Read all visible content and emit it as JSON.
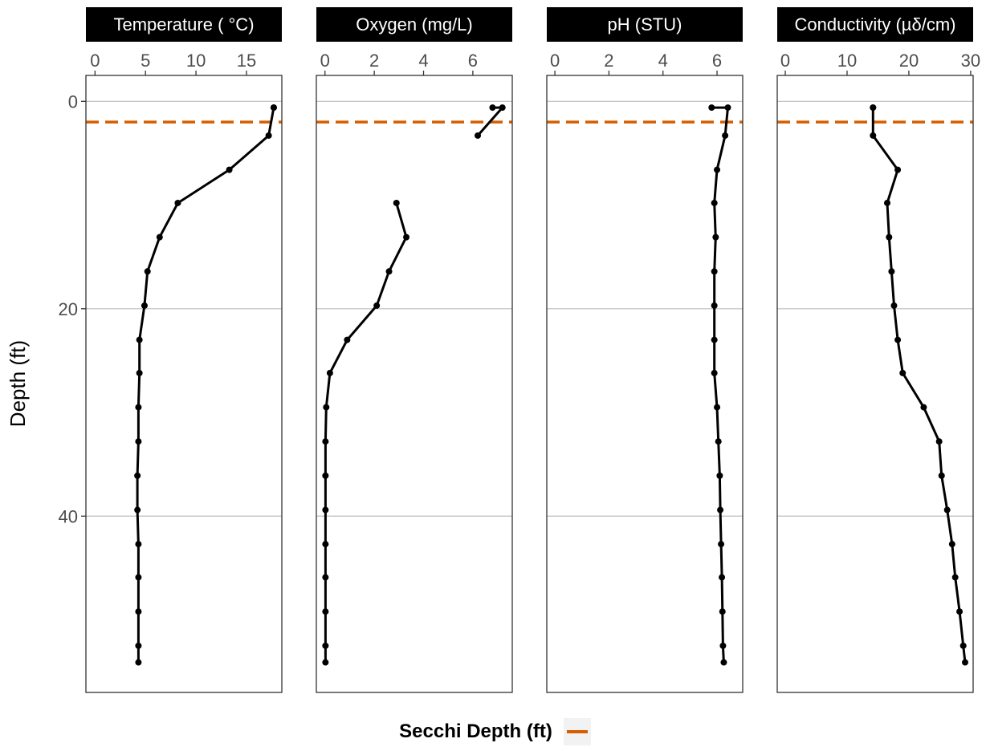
{
  "y_axis_label": "Depth (ft)",
  "colors": {
    "secchi": "#d55e00",
    "profile": "#000000",
    "grid": "#bebebe",
    "strip_bg": "#000000"
  },
  "legend": {
    "title": "Secchi Depth (ft)"
  },
  "chart_data": {
    "type": "line",
    "orientation": "depth-profile",
    "depth": [
      0.6,
      0.6,
      3.3,
      6.6,
      9.8,
      13.1,
      16.4,
      19.7,
      23.0,
      26.2,
      29.5,
      32.8,
      36.1,
      39.4,
      42.7,
      45.9,
      49.2,
      52.5,
      54.1
    ],
    "secchi_depth": 2.0,
    "y_ticks": [
      0,
      20,
      40
    ],
    "ylim": [
      -2.5,
      57.0
    ],
    "y_reversed": true,
    "grid": "horizontal major lines at y ticks",
    "legend_position": "bottom",
    "panels": [
      {
        "title": "Temperature ( °C)",
        "xlim": [
          -0.9,
          18.5
        ],
        "x_ticks": [
          0,
          5,
          10,
          15
        ],
        "values": [
          17.7,
          17.7,
          17.2,
          13.3,
          8.2,
          6.4,
          5.2,
          4.9,
          4.4,
          4.4,
          4.3,
          4.3,
          4.2,
          4.2,
          4.3,
          4.3,
          4.3,
          4.3,
          4.3
        ]
      },
      {
        "title": "Oxygen (mg/L)",
        "xlim": [
          -0.35,
          7.6
        ],
        "x_ticks": [
          0,
          2,
          4,
          6
        ],
        "values": [
          6.8,
          7.2,
          6.2,
          null,
          2.9,
          3.3,
          2.6,
          2.1,
          0.9,
          0.2,
          0.05,
          0.02,
          0.02,
          0.02,
          0.02,
          0.02,
          0.02,
          0.02,
          0.02
        ]
      },
      {
        "title": "pH (STU)",
        "xlim": [
          -0.3,
          6.95
        ],
        "x_ticks": [
          0,
          2,
          4,
          6
        ],
        "values": [
          5.8,
          6.4,
          6.3,
          6.0,
          5.9,
          5.95,
          5.9,
          5.9,
          5.9,
          5.9,
          6.0,
          6.05,
          6.1,
          6.12,
          6.15,
          6.18,
          6.2,
          6.22,
          6.25
        ]
      },
      {
        "title": "Conductivity (µδ/cm)",
        "xlim": [
          -1.3,
          30.4
        ],
        "x_ticks": [
          0,
          10,
          20,
          30
        ],
        "values": [
          14.2,
          14.2,
          14.2,
          18.2,
          16.5,
          16.8,
          17.2,
          17.6,
          18.2,
          19.0,
          22.4,
          24.9,
          25.3,
          26.2,
          27.0,
          27.5,
          28.2,
          28.8,
          29.1
        ]
      }
    ]
  }
}
